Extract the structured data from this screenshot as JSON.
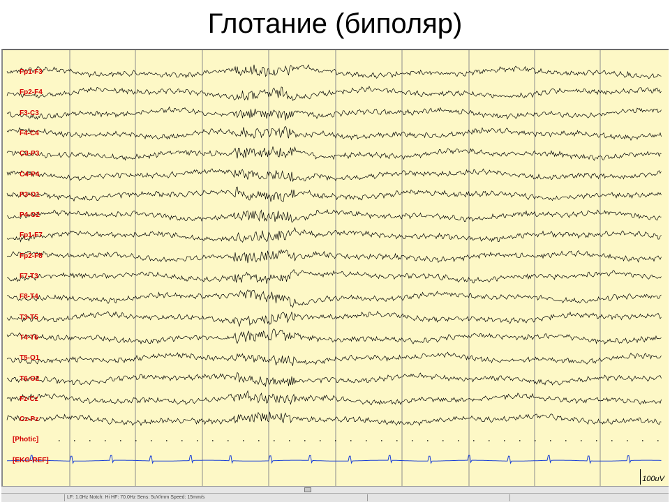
{
  "slide": {
    "title": "Глотание (биполяр)"
  },
  "eeg": {
    "channels": [
      {
        "label": "Fp1-F3",
        "kind": "eeg"
      },
      {
        "label": "Fp2-F4",
        "kind": "eeg"
      },
      {
        "label": "F3-C3",
        "kind": "eeg"
      },
      {
        "label": "F4-C4",
        "kind": "eeg"
      },
      {
        "label": "C3-P3",
        "kind": "eeg"
      },
      {
        "label": "C4-P4",
        "kind": "eeg"
      },
      {
        "label": "P3-O1",
        "kind": "eeg"
      },
      {
        "label": "P4-O2",
        "kind": "eeg"
      },
      {
        "label": "Fp1-F7",
        "kind": "eeg"
      },
      {
        "label": "Fp2-F8",
        "kind": "eeg"
      },
      {
        "label": "F7-T3",
        "kind": "eeg"
      },
      {
        "label": "F8-T4",
        "kind": "eeg"
      },
      {
        "label": "T3-T5",
        "kind": "eeg"
      },
      {
        "label": "T4-T6",
        "kind": "eeg"
      },
      {
        "label": "T5-O1",
        "kind": "eeg"
      },
      {
        "label": "T6-O2",
        "kind": "eeg"
      },
      {
        "label": "Fz-Cz",
        "kind": "eeg"
      },
      {
        "label": "Cz-Pz",
        "kind": "eeg"
      },
      {
        "label": "[Photic]",
        "kind": "photic"
      },
      {
        "label": "[EKG-REF]",
        "kind": "ekg"
      }
    ],
    "scale_label": "100uV",
    "colors": {
      "background": "#fdf8c6",
      "trace": "#000000",
      "label": "#d40000",
      "ekg": "#1a3fd6",
      "gridline": "#8c8c8c"
    },
    "status_text": "LF: 1.0Hz  Notch: Hi  HF: 70.0Hz  Sens: 5uV/mm  Speed: 15mm/s"
  }
}
